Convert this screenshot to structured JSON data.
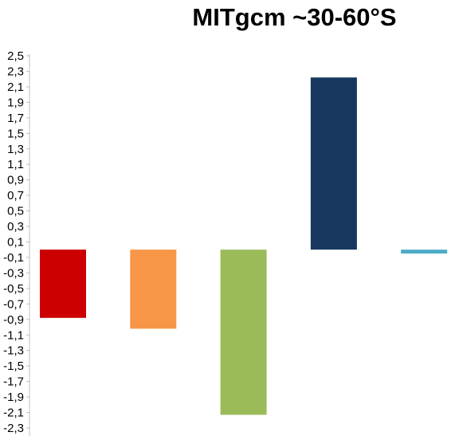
{
  "chart_data": {
    "type": "bar",
    "title": "MITgcm ~30-60°S",
    "xlabel": "",
    "ylabel": "",
    "ylim": [
      -2.4,
      2.5
    ],
    "grid": false,
    "yticks": [
      "2,5",
      "2,3",
      "2,1",
      "1,9",
      "1,7",
      "1,5",
      "1,3",
      "1,1",
      "0,9",
      "0,7",
      "0,5",
      "0,3",
      "0,1",
      "-0,1",
      "-0,3",
      "-0,5",
      "-0,7",
      "-0,9",
      "-1,1",
      "-1,3",
      "-1,5",
      "-1,7",
      "-1,9",
      "-2,1",
      "-2,3"
    ],
    "ytick_values": [
      2.5,
      2.3,
      2.1,
      1.9,
      1.7,
      1.5,
      1.3,
      1.1,
      0.9,
      0.7,
      0.5,
      0.3,
      0.1,
      -0.1,
      -0.3,
      -0.5,
      -0.7,
      -0.9,
      -1.1,
      -1.3,
      -1.5,
      -1.7,
      -1.9,
      -2.1,
      -2.3
    ],
    "values": [
      -0.88,
      -1.02,
      -2.13,
      2.22,
      -0.05
    ],
    "colors": [
      "#cc0000",
      "#f79646",
      "#9bbb59",
      "#17375e",
      "#4bacc6"
    ]
  }
}
